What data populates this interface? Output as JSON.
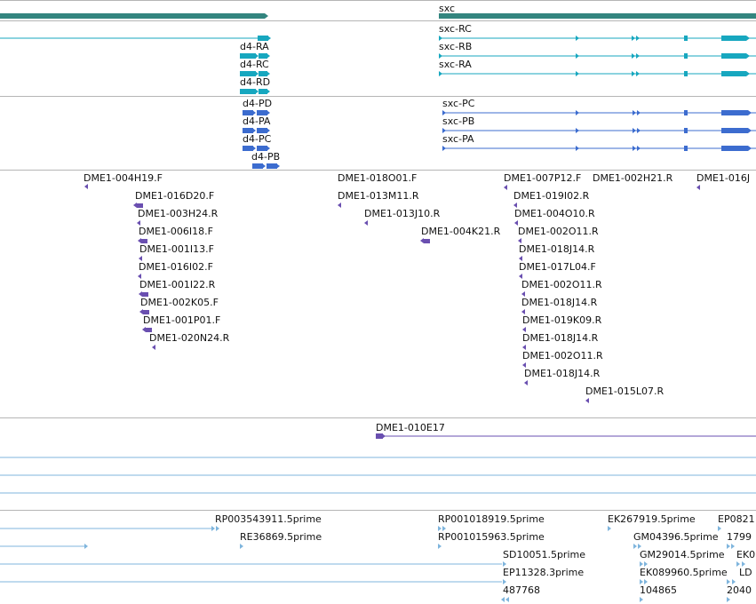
{
  "colors": {
    "gene": "#33857f",
    "transcript": "#17a7bf",
    "protein": "#3c6ccf",
    "est": "#6a4fb0",
    "cdna": "#7fb5dd",
    "separator": "#b5b5b5"
  },
  "gene_track": {
    "left_gene_label": "",
    "right_gene_label": "sxc"
  },
  "transcripts": {
    "left": [
      "d4-RA",
      "d4-RC",
      "d4-RD"
    ],
    "right": [
      "sxc-RC",
      "sxc-RB",
      "sxc-RA"
    ]
  },
  "proteins": {
    "left": [
      "d4-PD",
      "d4-PA",
      "d4-PC",
      "d4-PB"
    ],
    "right": [
      "sxc-PC",
      "sxc-PB",
      "sxc-PA"
    ]
  },
  "est_features": [
    "DME1-004H19.F",
    "DME1-016D20.F",
    "DME1-003H24.R",
    "DME1-006I18.F",
    "DME1-001I13.F",
    "DME1-016I02.F",
    "DME1-001I22.R",
    "DME1-002K05.F",
    "DME1-001P01.F",
    "DME1-020N24.R",
    "DME1-018O01.F",
    "DME1-013M11.R",
    "DME1-013J10.R",
    "DME1-004K21.R",
    "DME1-007P12.F",
    "DME1-002H21.R",
    "DME1-016J",
    "DME1-019I02.R",
    "DME1-004O10.R",
    "DME1-002O11.R",
    "DME1-018J14.R",
    "DME1-017L04.F",
    "DME1-002O11.R",
    "DME1-018J14.R",
    "DME1-019K09.R",
    "DME1-018J14.R",
    "DME1-002O11.R",
    "DME1-018J14.R",
    "DME1-015L07.R"
  ],
  "bac_feature": "DME1-010E17",
  "cdna_features": [
    "RP003543911.5prime",
    "RE36869.5prime",
    "RP001018919.5prime",
    "RP001015963.5prime",
    "SD10051.5prime",
    "EP11328.3prime",
    "487768",
    "EK267919.5prime",
    "EP0821",
    "GM04396.5prime",
    "1799",
    "GM29014.5prime",
    "EK0",
    "EK089960.5prime",
    "LD",
    "104865",
    "2040"
  ]
}
